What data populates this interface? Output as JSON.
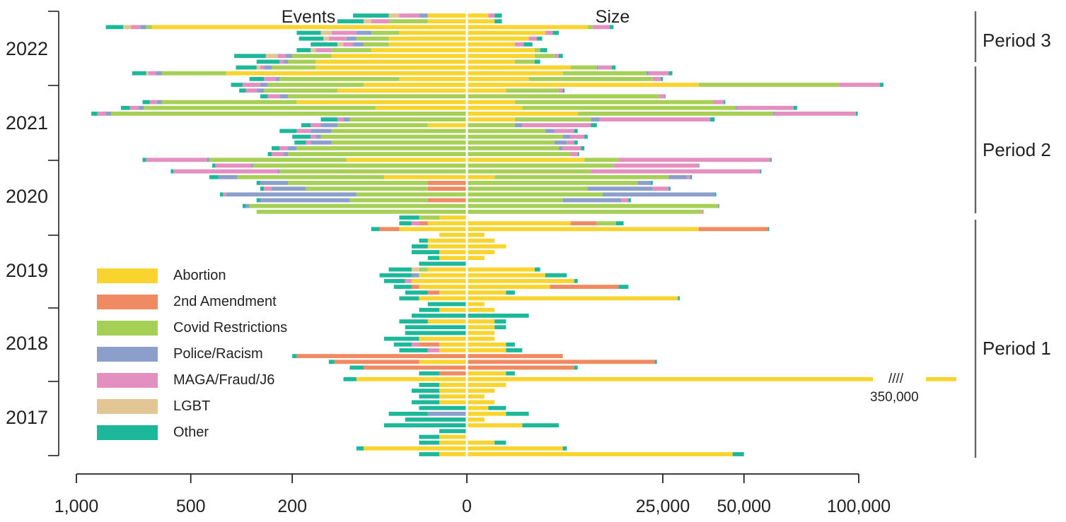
{
  "chart_data": {
    "type": "bar",
    "orientation": "horizontal-diverging",
    "left_panel_label": "Events",
    "right_panel_label": "Size",
    "x_ticks_left": [
      "1,000",
      "500",
      "200",
      "0"
    ],
    "x_ticks_right": [
      "25,000",
      "50,000",
      "100,000"
    ],
    "year_labels": [
      "2022",
      "2021",
      "2020",
      "2019",
      "2018",
      "2017"
    ],
    "periods": [
      "Period 3",
      "Period 2",
      "Period 1"
    ],
    "break_symbol": "////",
    "break_value_label": "350,000",
    "categories": [
      "Abortion",
      "2nd Amendment",
      "Covid Restrictions",
      "Police/Racism",
      "MAGA/Fraud/J6",
      "LGBT",
      "Other"
    ],
    "colors": {
      "Abortion": "#FAD42E",
      "2nd Amendment": "#F08A62",
      "Covid Restrictions": "#A6CF55",
      "Police/Racism": "#8C9FCB",
      "MAGA/Fraud/J6": "#E390C0",
      "LGBT": "#E3C696",
      "Other": "#1DB89A"
    },
    "months": [
      {
        "events": {
          "Abortion": 10,
          "MAGA/Fraud/J6": 15,
          "LGBT": 10,
          "Police/Racism": 5,
          "Other": 45
        },
        "size": {
          "Abortion": 300,
          "MAGA/Fraud/J6": 200,
          "Other": 300
        }
      },
      {
        "events": {
          "Abortion": 10,
          "Covid Restrictions": 30,
          "MAGA/Fraud/J6": 20,
          "LGBT": 10,
          "Other": 40
        },
        "size": {
          "Abortion": 500,
          "Other": 300
        }
      },
      {
        "events": {
          "Abortion": 650,
          "Covid Restrictions": 25,
          "MAGA/Fraud/J6": 40,
          "Police/Racism": 25,
          "LGBT": 35,
          "Other": 80
        },
        "size": {
          "Abortion": 9500,
          "Covid Restrictions": 800,
          "MAGA/Fraud/J6": 3000,
          "Other": 700
        }
      },
      {
        "events": {
          "Abortion": 30,
          "Covid Restrictions": 30,
          "MAGA/Fraud/J6": 40,
          "Police/Racism": 20,
          "LGBT": 20,
          "Other": 50
        },
        "size": {
          "Abortion": 4000,
          "MAGA/Fraud/J6": 800,
          "Other": 700
        }
      },
      {
        "events": {
          "Abortion": 40,
          "Covid Restrictions": 40,
          "MAGA/Fraud/J6": 30,
          "Police/Racism": 15,
          "LGBT": 10,
          "Other": 50
        },
        "size": {
          "Abortion": 2500,
          "MAGA/Fraud/J6": 700,
          "Other": 500
        }
      },
      {
        "events": {
          "Abortion": 40,
          "Covid Restrictions": 30,
          "MAGA/Fraud/J6": 15,
          "Police/Racism": 15,
          "LGBT": 10,
          "Other": 50
        },
        "size": {
          "Abortion": 1500,
          "MAGA/Fraud/J6": 600,
          "Other": 700
        }
      },
      {
        "events": {
          "Abortion": 60,
          "Covid Restrictions": 60,
          "MAGA/Fraud/J6": 30,
          "LGBT": 10,
          "Other": 30
        },
        "size": {
          "Abortion": 3000,
          "Covid Restrictions": 500,
          "Other": 700
        }
      },
      {
        "events": {
          "Abortion": 120,
          "Covid Restrictions": 80,
          "MAGA/Fraud/J6": 20,
          "Police/Racism": 15,
          "LGBT": 30,
          "Other": 90
        },
        "size": {
          "Abortion": 3000,
          "Covid Restrictions": 2000,
          "MAGA/Fraud/J6": 500,
          "Other": 500
        }
      },
      {
        "events": {
          "Abortion": 150,
          "Covid Restrictions": 60,
          "MAGA/Fraud/J6": 10,
          "Police/Racism": 10,
          "Other": 60
        },
        "size": {
          "Abortion": 1500,
          "Covid Restrictions": 1500,
          "Other": 500
        }
      },
      {
        "events": {
          "Abortion": 150,
          "Covid Restrictions": 100,
          "MAGA/Fraud/J6": 10,
          "Police/Racism": 20,
          "LGBT": 10,
          "Other": 60
        },
        "size": {
          "Abortion": 7000,
          "Covid Restrictions": 4000,
          "MAGA/Fraud/J6": 2500,
          "Police/Racism": 200,
          "Other": 700
        }
      },
      {
        "events": {
          "Abortion": 380,
          "Covid Restrictions": 230,
          "MAGA/Fraud/J6": 30,
          "Police/Racism": 25,
          "LGBT": 10,
          "Other": 60
        },
        "size": {
          "Abortion": 6000,
          "Covid Restrictions": 15000,
          "MAGA/Fraud/J6": 5000,
          "Police/Racism": 500,
          "Other": 1000
        }
      },
      {
        "events": {
          "Abortion": 30,
          "Covid Restrictions": 200,
          "MAGA/Fraud/J6": 30,
          "Police/Racism": 10,
          "Other": 40
        },
        "size": {
          "Abortion": 2500,
          "Covid Restrictions": 20000,
          "MAGA/Fraud/J6": 2000,
          "Other": 500
        }
      },
      {
        "events": {
          "Abortion": 70,
          "Covid Restrictions": 190,
          "MAGA/Fraud/J6": 50,
          "Police/Racism": 20,
          "Other": 35
        },
        "size": {
          "Abortion": 35000,
          "Covid Restrictions": 55000,
          "MAGA/Fraud/J6": 21000,
          "Other": 2000
        }
      },
      {
        "events": {
          "Abortion": 110,
          "Covid Restrictions": 160,
          "MAGA/Fraud/J6": 30,
          "Police/Racism": 20,
          "Other": 20
        },
        "size": {
          "Abortion": 1000,
          "Covid Restrictions": 4500,
          "MAGA/Fraud/J6": 500,
          "Other": 200
        }
      },
      {
        "events": {
          "Covid Restrictions": 210,
          "MAGA/Fraud/J6": 30,
          "Police/Racism": 20,
          "Other": 20
        },
        "size": {
          "Covid Restrictions": 24000,
          "MAGA/Fraud/J6": 1500,
          "Other": 200
        }
      },
      {
        "events": {
          "Abortion": 190,
          "Covid Restrictions": 420,
          "MAGA/Fraud/J6": 30,
          "Police/Racism": 20,
          "Other": 30
        },
        "size": {
          "Abortion": 1500,
          "Covid Restrictions": 38000,
          "MAGA/Fraud/J6": 3500,
          "Other": 500
        }
      },
      {
        "events": {
          "Abortion": 55,
          "Covid Restrictions": 630,
          "MAGA/Fraud/J6": 40,
          "Police/Racism": 20,
          "Other": 40
        },
        "size": {
          "Abortion": 2000,
          "Covid Restrictions": 45000,
          "MAGA/Fraud/J6": 22000,
          "Police/Racism": 500,
          "Other": 1500
        }
      },
      {
        "events": {
          "Covid Restrictions": 830,
          "MAGA/Fraud/J6": 40,
          "Police/Racism": 25,
          "Other": 30
        },
        "size": {
          "Abortion": 8000,
          "Covid Restrictions": 53000,
          "MAGA/Fraud/J6": 37000,
          "Police/Racism": 500,
          "Other": 1000
        }
      },
      {
        "events": {
          "Covid Restrictions": 90,
          "MAGA/Fraud/J6": 10,
          "Police/Racism": 10,
          "Other": 30
        },
        "size": {
          "Abortion": 1500,
          "Covid Restrictions": 8500,
          "MAGA/Fraud/J6": 27000,
          "Police/Racism": 1500,
          "Other": 1500
        }
      },
      {
        "events": {
          "Abortion": 10,
          "Covid Restrictions": 100,
          "MAGA/Fraud/J6": 20,
          "Police/Racism": 30,
          "Other": 20
        },
        "size": {
          "Covid Restrictions": 1500,
          "MAGA/Fraud/J6": 8000,
          "Police/Racism": 500,
          "Other": 1000
        }
      },
      {
        "events": {
          "Covid Restrictions": 120,
          "MAGA/Fraud/J6": 30,
          "Police/Racism": 40,
          "Other": 40
        },
        "size": {
          "Covid Restrictions": 4000,
          "MAGA/Fraud/J6": 2500,
          "Police/Racism": 1000,
          "Other": 500
        }
      },
      {
        "events": {
          "Covid Restrictions": 140,
          "MAGA/Fraud/J6": 10,
          "Police/Racism": 10,
          "Other": 40
        },
        "size": {
          "Covid Restrictions": 6000,
          "MAGA/Fraud/J6": 2000,
          "Police/Racism": 1000,
          "Other": 500
        }
      },
      {
        "events": {
          "Covid Restrictions": 120,
          "MAGA/Fraud/J6": 10,
          "Police/Racism": 40,
          "Other": 25
        },
        "size": {
          "Covid Restrictions": 5000,
          "MAGA/Fraud/J6": 1000,
          "Police/Racism": 1500,
          "Other": 500
        }
      },
      {
        "events": {
          "Covid Restrictions": 190,
          "MAGA/Fraud/J6": 20,
          "Police/Racism": 20,
          "Other": 20
        },
        "size": {
          "Covid Restrictions": 5500,
          "MAGA/Fraud/J6": 2500,
          "Police/Racism": 500,
          "Other": 500
        }
      },
      {
        "events": {
          "Covid Restrictions": 210,
          "MAGA/Fraud/J6": 30,
          "Police/Racism": 10,
          "Other": 10
        },
        "size": {
          "Covid Restrictions": 7000,
          "MAGA/Fraud/J6": 1000,
          "Other": 200
        }
      },
      {
        "events": {
          "Abortion": 95,
          "Covid Restrictions": 340,
          "MAGA/Fraud/J6": 230,
          "Police/Racism": 10,
          "Other": 15
        },
        "size": {
          "Abortion": 9000,
          "Covid Restrictions": 6000,
          "MAGA/Fraud/J6": 45000,
          "Other": 500
        }
      },
      {
        "events": {
          "Covid Restrictions": 300,
          "MAGA/Fraud/J6": 110,
          "Police/Racism": 5,
          "Other": 10
        },
        "size": {
          "Covid Restrictions": 14000,
          "MAGA/Fraud/J6": 21000,
          "Other": 200
        }
      },
      {
        "events": {
          "Covid Restrictions": 230,
          "MAGA/Fraud/J6": 330,
          "Police/Racism": 5,
          "Other": 10
        },
        "size": {
          "Covid Restrictions": 10000,
          "MAGA/Fraud/J6": 46000,
          "Other": 500
        }
      },
      {
        "events": {
          "Abortion": 45,
          "Covid Restrictions": 300,
          "Police/Racism": 60,
          "Other": 30
        },
        "size": {
          "Abortion": 500,
          "Covid Restrictions": 26000,
          "Police/Racism": 5000,
          "MAGA/Fraud/J6": 1000,
          "Other": 500
        }
      },
      {
        "events": {
          "Covid Restrictions": 200,
          "Police/Racism": 70,
          "2nd Amendment": 10,
          "Other": 10
        },
        "size": {
          "Covid Restrictions": 19000,
          "Police/Racism": 3000,
          "Other": 500
        }
      },
      {
        "events": {
          "Covid Restrictions": 160,
          "MAGA/Fraud/J6": 20,
          "Police/Racism": 80,
          "2nd Amendment": 10,
          "Other": 10
        },
        "size": {
          "Covid Restrictions": 9500,
          "MAGA/Fraud/J6": 4000,
          "Police/Racism": 13000,
          "Other": 500
        }
      },
      {
        "events": {
          "Covid Restrictions": 80,
          "MAGA/Fraud/J6": 10,
          "Police/Racism": 300,
          "Other": 10
        },
        "size": {
          "Covid Restrictions": 12000,
          "Police/Racism": 28000,
          "Other": 500
        }
      },
      {
        "events": {
          "Covid Restrictions": 80,
          "Police/Racism": 190,
          "2nd Amendment": 10,
          "Other": 10
        },
        "size": {
          "Covid Restrictions": 6000,
          "MAGA/Fraud/J6": 1500,
          "Police/Racism": 9500,
          "Other": 500
        }
      },
      {
        "events": {
          "Covid Restrictions": 310,
          "Police/Racism": 10,
          "Other": 10
        },
        "size": {
          "Covid Restrictions": 41000,
          "Police/Racism": 500
        }
      },
      {
        "events": {
          "Covid Restrictions": 290
        },
        "size": {
          "Covid Restrictions": 36000,
          "MAGA/Fraud/J6": 500
        }
      },
      {
        "events": {
          "Abortion": 5,
          "Covid Restrictions": 10,
          "Other": 15
        },
        "size": {}
      },
      {
        "events": {
          "Abortion": 10,
          "MAGA/Fraud/J6": 5,
          "2nd Amendment": 5,
          "Other": 10
        },
        "size": {
          "Abortion": 7000,
          "Covid Restrictions": 3500,
          "2nd Amendment": 4000,
          "Other": 1500
        }
      },
      {
        "events": {
          "Abortion": 30,
          "2nd Amendment": 20,
          "Other": 10
        },
        "size": {
          "Abortion": 35000,
          "2nd Amendment": 24000,
          "Other": 500
        }
      },
      {
        "events": {
          "Abortion": 5
        },
        "size": {
          "Abortion": 200
        }
      },
      {
        "events": {
          "Abortion": 10,
          "Other": 5
        },
        "size": {
          "Abortion": 500
        }
      },
      {
        "events": {
          "Abortion": 10,
          "Other": 10
        },
        "size": {
          "Abortion": 1000
        }
      },
      {
        "events": {
          "Abortion": 5,
          "Other": 15
        },
        "size": {
          "Abortion": 500
        }
      },
      {
        "events": {
          "Abortion": 5,
          "Other": 5
        },
        "size": {
          "Abortion": 200
        }
      },
      {
        "events": {
          "Other": 15
        },
        "size": {}
      },
      {
        "events": {
          "Abortion": 10,
          "Covid Restrictions": 5,
          "LGBT": 5,
          "Other": 20
        },
        "size": {
          "Abortion": 3000,
          "Other": 500
        }
      },
      {
        "events": {
          "Abortion": 15,
          "Police/Racism": 5,
          "Other": 30
        },
        "size": {
          "Abortion": 4000,
          "Other": 2500
        }
      },
      {
        "events": {
          "Abortion": 20,
          "MAGA/Fraud/J6": 5,
          "Other": 20
        },
        "size": {
          "Abortion": 7500,
          "Other": 500
        }
      },
      {
        "events": {
          "Abortion": 15,
          "2nd Amendment": 5,
          "Other": 15
        },
        "size": {
          "Abortion": 4500,
          "2nd Amendment": 10500,
          "Other": 2000
        }
      },
      {
        "events": {
          "Abortion": 5,
          "2nd Amendment": 5,
          "Other": 15
        },
        "size": {
          "Abortion": 1000,
          "Other": 500
        }
      },
      {
        "events": {
          "Abortion": 15,
          "Other": 15
        },
        "size": {
          "Abortion": 29000,
          "Other": 500
        }
      },
      {
        "events": {
          "Other": 10
        },
        "size": {
          "Abortion": 200
        }
      },
      {
        "events": {
          "Abortion": 5,
          "Other": 10
        },
        "size": {
          "Abortion": 500
        }
      },
      {
        "events": {
          "Other": 20
        },
        "size": {
          "Other": 2500
        }
      },
      {
        "events": {
          "Abortion": 10,
          "Other": 20
        },
        "size": {
          "Abortion": 500,
          "Other": 500
        }
      },
      {
        "events": {
          "Other": 25
        },
        "size": {
          "Abortion": 500,
          "Other": 500
        }
      },
      {
        "events": {
          "Other": 25
        },
        "size": {
          "Abortion": 500
        }
      },
      {
        "events": {
          "Abortion": 15,
          "Other": 30
        },
        "size": {
          "Abortion": 500
        }
      },
      {
        "events": {
          "Abortion": 5,
          "2nd Amendment": 10,
          "MAGA/Fraud/J6": 5,
          "Other": 15
        },
        "size": {
          "Abortion": 1000,
          "Other": 500
        }
      },
      {
        "events": {
          "Abortion": 5,
          "MAGA/Fraud/J6": 5,
          "Other": 20
        },
        "size": {
          "Abortion": 1000,
          "Other": 1000
        }
      },
      {
        "events": {
          "2nd Amendment": 190,
          "Other": 10
        },
        "size": {
          "2nd Amendment": 6000
        }
      },
      {
        "events": {
          "Abortion": 15,
          "2nd Amendment": 100,
          "Other": 10
        },
        "size": {
          "2nd Amendment": 23000,
          "Other": 500
        }
      },
      {
        "events": {
          "2nd Amendment": 70,
          "Other": 20
        },
        "size": {
          "2nd Amendment": 7500,
          "Other": 500
        }
      },
      {
        "events": {
          "2nd Amendment": 5,
          "Other": 10
        },
        "size": {
          "Abortion": 1000,
          "Other": 500
        }
      },
      {
        "events": {
          "Abortion": 80,
          "Other": 20
        },
        "size": {
          "Abortion": 350000
        }
      },
      {
        "events": {
          "Abortion": 5,
          "Other": 10
        },
        "size": {
          "Abortion": 1000
        }
      },
      {
        "events": {
          "Abortion": 5,
          "Other": 15
        },
        "size": {
          "Abortion": 500
        }
      },
      {
        "events": {
          "Abortion": 5,
          "Other": 10
        },
        "size": {
          "Abortion": 200
        }
      },
      {
        "events": {
          "Abortion": 5,
          "Other": 15
        },
        "size": {
          "Abortion": 500
        }
      },
      {
        "events": {
          "Other": 15
        },
        "size": {
          "Abortion": 300,
          "Other": 700
        }
      },
      {
        "events": {
          "Police/Racism": 10,
          "Other": 30
        },
        "size": {
          "Abortion": 1000,
          "Other": 1500
        }
      },
      {
        "events": {
          "Other": 25
        },
        "size": {
          "Abortion": 200
        }
      },
      {
        "events": {
          "Other": 45
        },
        "size": {
          "Abortion": 2000,
          "Other": 3500
        }
      },
      {
        "events": {
          "Other": 5
        },
        "size": {}
      },
      {
        "events": {
          "Abortion": 5,
          "Other": 10
        },
        "size": {}
      },
      {
        "events": {
          "Abortion": 5,
          "Other": 10
        },
        "size": {
          "Abortion": 500,
          "Other": 500
        }
      },
      {
        "events": {
          "Abortion": 70,
          "Other": 10
        },
        "size": {
          "Abortion": 6000,
          "Other": 500
        }
      },
      {
        "events": {
          "Abortion": 5,
          "Other": 10
        },
        "size": {
          "Abortion": 46000,
          "Other": 4000
        }
      }
    ]
  }
}
